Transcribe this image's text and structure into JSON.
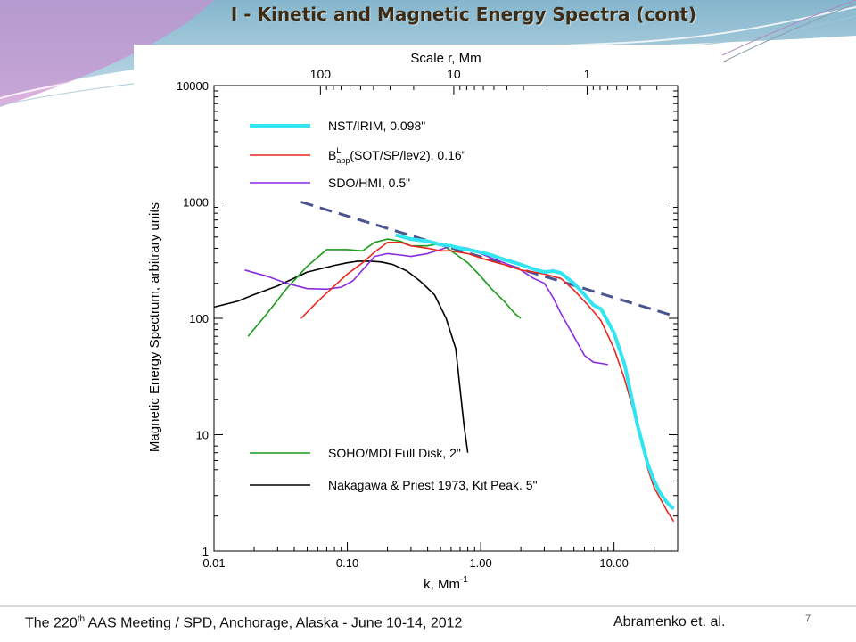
{
  "slide": {
    "title": "I - Kinetic and Magnetic Energy Spectra (cont)",
    "footer_prefix": "The 220",
    "footer_sup": "th",
    "footer_rest": " AAS Meeting / SPD, Anchorage, Alaska  -  June 10-14, 2012",
    "footer_authors": "Abramenko et. al.",
    "page_number": "7",
    "colors": {
      "banner_top": "#7fb3c9",
      "banner_bottom": "#c98fd0",
      "title": "#3d2b14"
    }
  },
  "chart_data": {
    "type": "line",
    "title": "",
    "xlabel": "k, Mm",
    "xlabel_sup": "-1",
    "ylabel": "Magnetic Energy Spectrum, arbitrary units",
    "top_axis_label": "Scale r,  Mm",
    "xscale": "log",
    "yscale": "log",
    "xlim": [
      0.01,
      30
    ],
    "ylim": [
      1,
      10000
    ],
    "x_ticks": [
      0.01,
      0.1,
      1,
      10
    ],
    "x_tick_labels": [
      "0.01",
      "0.10",
      "1.00",
      "10.00"
    ],
    "y_ticks": [
      1,
      10,
      100,
      1000,
      10000
    ],
    "y_tick_labels": [
      "1",
      "10",
      "100",
      "1000",
      "10000"
    ],
    "top_ticks_scale_mm": [
      100,
      10,
      1
    ],
    "top_tick_labels": [
      "100",
      "10",
      "1"
    ],
    "grid": false,
    "legend_position": "top-left and bottom-left (two groups)",
    "series": [
      {
        "name": "NST/IRIM, 0.098\"",
        "color": "#33e5f2",
        "width": 4,
        "legend_group": "top",
        "x": [
          0.23,
          0.3,
          0.4,
          0.5,
          0.6,
          0.7,
          0.8,
          1.0,
          1.2,
          1.5,
          2.0,
          2.5,
          3.0,
          3.5,
          4.0,
          5.0,
          6.0,
          7.0,
          8.0,
          10.0,
          12.0,
          15.0,
          18.0,
          20.0,
          22.0,
          25.0,
          28.0
        ],
        "y": [
          520,
          480,
          460,
          430,
          420,
          400,
          390,
          370,
          350,
          320,
          290,
          265,
          250,
          255,
          245,
          200,
          160,
          130,
          120,
          75,
          40,
          12,
          5.5,
          4.0,
          3.2,
          2.6,
          2.3
        ]
      },
      {
        "name": "B^L_app(SOT/SP/lev2), 0.16\"",
        "name_parts": {
          "base": "B",
          "sup": "L",
          "sub": "app",
          "rest": "(SOT/SP/lev2), 0.16\""
        },
        "color": "#e8261e",
        "width": 1.6,
        "legend_group": "top",
        "x": [
          0.045,
          0.06,
          0.08,
          0.1,
          0.13,
          0.16,
          0.2,
          0.25,
          0.3,
          0.4,
          0.5,
          0.6,
          0.8,
          1.0,
          1.2,
          1.5,
          2.0,
          2.5,
          3.0,
          4.0,
          5.0,
          6.0,
          7.0,
          8.0,
          10.0,
          12.0,
          15.0,
          18.0,
          20.0,
          25.0,
          28.0
        ],
        "y": [
          100,
          140,
          190,
          240,
          300,
          370,
          450,
          450,
          420,
          400,
          380,
          380,
          360,
          330,
          310,
          290,
          260,
          250,
          240,
          220,
          175,
          140,
          115,
          95,
          55,
          30,
          12,
          5.0,
          3.5,
          2.2,
          1.8
        ]
      },
      {
        "name": "SDO/HMI, 0.5\"",
        "color": "#8a2be2",
        "width": 1.6,
        "legend_group": "top",
        "x": [
          0.017,
          0.025,
          0.035,
          0.05,
          0.07,
          0.09,
          0.11,
          0.13,
          0.16,
          0.2,
          0.25,
          0.3,
          0.4,
          0.5,
          0.6,
          0.8,
          1.0,
          1.2,
          1.5,
          2.0,
          2.5,
          3.0,
          3.5,
          4.0,
          5.0,
          6.0,
          7.0,
          8.0,
          9.0
        ],
        "y": [
          260,
          230,
          200,
          180,
          178,
          185,
          210,
          260,
          340,
          360,
          350,
          340,
          360,
          390,
          420,
          400,
          360,
          330,
          300,
          260,
          220,
          200,
          150,
          110,
          70,
          48,
          42,
          41,
          40
        ]
      },
      {
        "name": "SOHO/MDI Full Disk, 2\"",
        "color": "#1c9b1c",
        "width": 1.6,
        "legend_group": "bottom",
        "x": [
          0.018,
          0.025,
          0.035,
          0.05,
          0.07,
          0.1,
          0.13,
          0.16,
          0.2,
          0.25,
          0.3,
          0.4,
          0.5,
          0.6,
          0.8,
          1.0,
          1.2,
          1.5,
          1.8,
          2.0
        ],
        "y": [
          70,
          110,
          180,
          280,
          390,
          390,
          380,
          450,
          480,
          460,
          420,
          420,
          440,
          380,
          300,
          230,
          180,
          140,
          110,
          100
        ]
      },
      {
        "name": "Nakagawa & Priest 1973, Kit Peak. 5\"",
        "color": "#000000",
        "width": 1.6,
        "legend_group": "bottom",
        "x": [
          0.01,
          0.015,
          0.02,
          0.03,
          0.05,
          0.08,
          0.1,
          0.12,
          0.15,
          0.18,
          0.22,
          0.28,
          0.35,
          0.45,
          0.55,
          0.65,
          0.7,
          0.75,
          0.8
        ],
        "y": [
          125,
          140,
          160,
          190,
          250,
          285,
          300,
          310,
          310,
          305,
          290,
          255,
          210,
          160,
          100,
          55,
          25,
          12,
          7
        ]
      },
      {
        "name": "",
        "color": "#4a5590",
        "width": 3,
        "dashed": true,
        "legend_group": "none",
        "x": [
          0.045,
          28.0
        ],
        "y": [
          1000,
          105
        ]
      }
    ]
  }
}
